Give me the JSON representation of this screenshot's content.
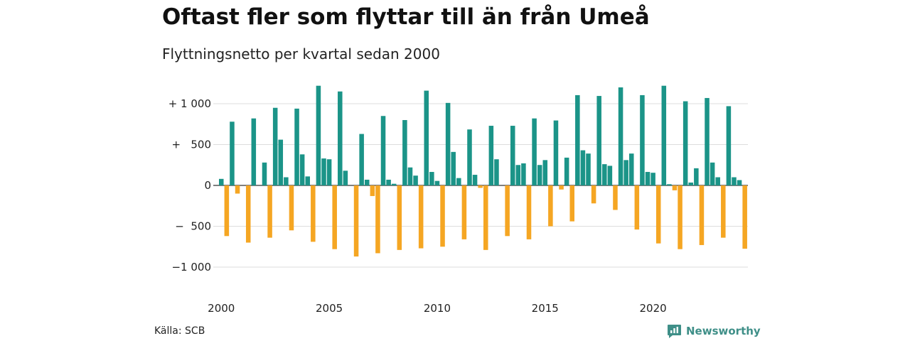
{
  "header": {
    "title": "Oftast fler som flyttar till än från Umeå",
    "subtitle": "Flyttningsnetto per kvartal sedan 2000"
  },
  "footer": {
    "source": "Källa: SCB",
    "brand": "Newsworthy"
  },
  "colors": {
    "positive": "#1b9488",
    "negative": "#f5a623",
    "grid": "#dddddd",
    "brand": "#3f8f88"
  },
  "chart_data": {
    "type": "bar",
    "title": "Oftast fler som flyttar till än från Umeå",
    "subtitle": "Flyttningsnetto per kvartal sedan 2000",
    "xlabel": "",
    "ylabel": "",
    "ylim": [
      -1150,
      1250
    ],
    "y_ticks": [
      {
        "value": 1000,
        "label": "+ 1 000"
      },
      {
        "value": 500,
        "label": "+   500"
      },
      {
        "value": 0,
        "label": "0"
      },
      {
        "value": -500,
        "label": "−  500"
      },
      {
        "value": -1000,
        "label": "−1 000"
      }
    ],
    "x_ticks": [
      "2000",
      "2005",
      "2010",
      "2015",
      "2020"
    ],
    "x_tick_years": [
      2000,
      2005,
      2010,
      2015,
      2020
    ],
    "grid": true,
    "legend": "none",
    "series": [
      {
        "start_year": 2000,
        "values": [
          80,
          -620,
          780,
          -100,
          0,
          -700,
          820,
          0,
          280,
          -640,
          950,
          560,
          100,
          -550,
          940,
          380,
          110,
          -690,
          1220,
          330,
          320,
          -780,
          1150,
          180,
          0,
          -870,
          630,
          70,
          -130,
          -830,
          850,
          70,
          20,
          -790,
          800,
          220,
          120,
          -770,
          1160,
          165,
          55,
          -750,
          1010,
          410,
          90,
          -660,
          685,
          130,
          -30,
          -790,
          730,
          320,
          0,
          -620,
          730,
          250,
          270,
          -660,
          820,
          250,
          310,
          -500,
          795,
          -50,
          340,
          -440,
          1105,
          430,
          390,
          -220,
          1095,
          260,
          240,
          -300,
          1200,
          310,
          390,
          -540,
          1105,
          165,
          155,
          -710,
          1220,
          15,
          -60,
          -780,
          1030,
          35,
          210,
          -730,
          1070,
          280,
          100,
          -640,
          970,
          100,
          65,
          -775
        ]
      }
    ]
  }
}
